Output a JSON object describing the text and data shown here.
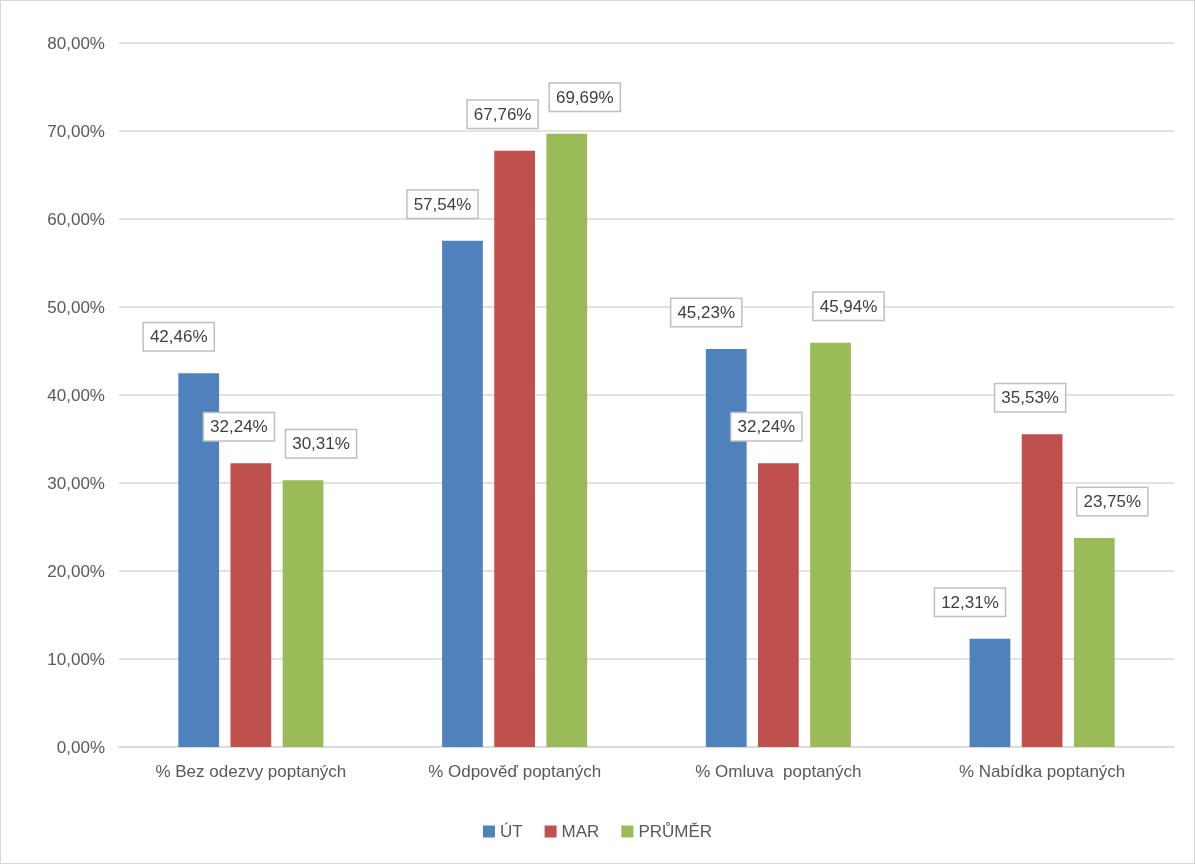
{
  "chart_data": {
    "type": "bar",
    "categories": [
      "% Bez odezvy poptaných",
      "% Odpověď poptaných",
      "% Omluva  poptaných",
      "% Nabídka poptaných"
    ],
    "series": [
      {
        "name": "ÚT",
        "color": "#4f81bd",
        "values": [
          42.46,
          57.54,
          45.23,
          12.31
        ],
        "value_labels": [
          "42,46%",
          "57,54%",
          "45,23%",
          "12,31%"
        ]
      },
      {
        "name": "MAR",
        "color": "#c0504d",
        "values": [
          32.24,
          67.76,
          32.24,
          35.53
        ],
        "value_labels": [
          "32,24%",
          "67,76%",
          "32,24%",
          "35,53%"
        ]
      },
      {
        "name": "PRŮMĚR",
        "color": "#9bbb59",
        "values": [
          30.31,
          69.69,
          45.94,
          23.75
        ],
        "value_labels": [
          "30,31%",
          "69,69%",
          "45,94%",
          "23,75%"
        ]
      }
    ],
    "ylim": [
      0,
      80
    ],
    "yticks": [
      {
        "value": 0,
        "label": "0,00%"
      },
      {
        "value": 10,
        "label": "10,00%"
      },
      {
        "value": 20,
        "label": "20,00%"
      },
      {
        "value": 30,
        "label": "30,00%"
      },
      {
        "value": 40,
        "label": "40,00%"
      },
      {
        "value": 50,
        "label": "50,00%"
      },
      {
        "value": 60,
        "label": "60,00%"
      },
      {
        "value": 70,
        "label": "70,00%"
      },
      {
        "value": 80,
        "label": "80,00%"
      }
    ],
    "grid": "y",
    "legend": "bottom"
  }
}
